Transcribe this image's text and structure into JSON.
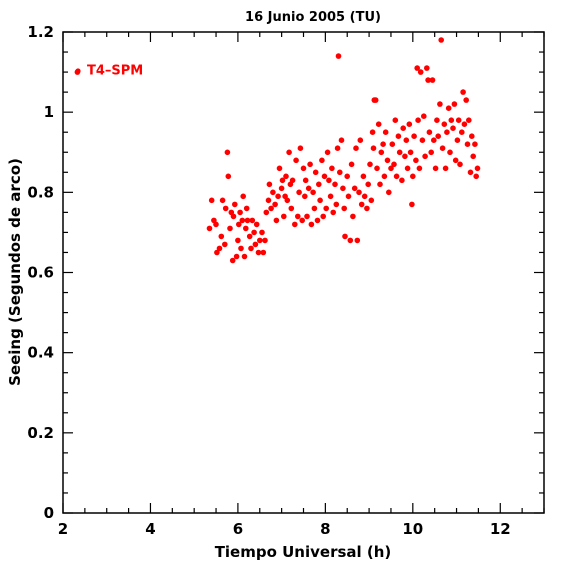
{
  "chart_data": {
    "type": "scatter",
    "title": "16 Junio 2005 (TU)",
    "xlabel": "Tiempo Universal (h)",
    "ylabel": "Seeing (Segundos de arco)",
    "xlim": [
      2,
      13
    ],
    "ylim": [
      0,
      1.2
    ],
    "xticks": [
      2,
      4,
      6,
      8,
      10,
      12
    ],
    "yticks": [
      0,
      0.2,
      0.4,
      0.6,
      0.8,
      1,
      1.2
    ],
    "xtick_labels": [
      "2",
      "4",
      "6",
      "8",
      "10",
      "12"
    ],
    "ytick_labels": [
      "0",
      "0.2",
      "0.4",
      "0.6",
      "0.8",
      "1",
      "1.2"
    ],
    "grid": false,
    "legend": {
      "position": "top-left",
      "label": "T4–SPM",
      "color": "#ff0000"
    },
    "series": [
      {
        "name": "T4–SPM",
        "color": "#ff0000",
        "points": [
          [
            2.33,
            1.1
          ],
          [
            5.35,
            0.71
          ],
          [
            5.4,
            0.78
          ],
          [
            5.45,
            0.73
          ],
          [
            5.5,
            0.72
          ],
          [
            5.52,
            0.65
          ],
          [
            5.58,
            0.66
          ],
          [
            5.62,
            0.69
          ],
          [
            5.65,
            0.78
          ],
          [
            5.7,
            0.67
          ],
          [
            5.72,
            0.76
          ],
          [
            5.76,
            0.9
          ],
          [
            5.78,
            0.84
          ],
          [
            5.82,
            0.71
          ],
          [
            5.85,
            0.75
          ],
          [
            5.88,
            0.63
          ],
          [
            5.9,
            0.74
          ],
          [
            5.93,
            0.77
          ],
          [
            5.97,
            0.64
          ],
          [
            6.0,
            0.68
          ],
          [
            6.02,
            0.72
          ],
          [
            6.05,
            0.75
          ],
          [
            6.07,
            0.66
          ],
          [
            6.1,
            0.73
          ],
          [
            6.12,
            0.79
          ],
          [
            6.15,
            0.64
          ],
          [
            6.18,
            0.71
          ],
          [
            6.2,
            0.76
          ],
          [
            6.22,
            0.73
          ],
          [
            6.27,
            0.69
          ],
          [
            6.3,
            0.66
          ],
          [
            6.33,
            0.73
          ],
          [
            6.37,
            0.7
          ],
          [
            6.4,
            0.67
          ],
          [
            6.43,
            0.72
          ],
          [
            6.47,
            0.65
          ],
          [
            6.5,
            0.68
          ],
          [
            6.55,
            0.7
          ],
          [
            6.58,
            0.65
          ],
          [
            6.62,
            0.68
          ],
          [
            6.65,
            0.75
          ],
          [
            6.7,
            0.78
          ],
          [
            6.72,
            0.82
          ],
          [
            6.76,
            0.76
          ],
          [
            6.8,
            0.8
          ],
          [
            6.85,
            0.77
          ],
          [
            6.88,
            0.73
          ],
          [
            6.92,
            0.79
          ],
          [
            6.95,
            0.86
          ],
          [
            7.0,
            0.81
          ],
          [
            7.02,
            0.83
          ],
          [
            7.05,
            0.74
          ],
          [
            7.08,
            0.79
          ],
          [
            7.1,
            0.84
          ],
          [
            7.13,
            0.78
          ],
          [
            7.17,
            0.9
          ],
          [
            7.2,
            0.82
          ],
          [
            7.22,
            0.76
          ],
          [
            7.25,
            0.83
          ],
          [
            7.3,
            0.72
          ],
          [
            7.33,
            0.88
          ],
          [
            7.37,
            0.74
          ],
          [
            7.4,
            0.8
          ],
          [
            7.43,
            0.91
          ],
          [
            7.47,
            0.73
          ],
          [
            7.5,
            0.86
          ],
          [
            7.53,
            0.79
          ],
          [
            7.55,
            0.83
          ],
          [
            7.58,
            0.74
          ],
          [
            7.62,
            0.81
          ],
          [
            7.65,
            0.87
          ],
          [
            7.68,
            0.72
          ],
          [
            7.72,
            0.8
          ],
          [
            7.75,
            0.76
          ],
          [
            7.78,
            0.85
          ],
          [
            7.82,
            0.73
          ],
          [
            7.85,
            0.82
          ],
          [
            7.88,
            0.78
          ],
          [
            7.92,
            0.88
          ],
          [
            7.95,
            0.74
          ],
          [
            7.98,
            0.84
          ],
          [
            8.02,
            0.76
          ],
          [
            8.05,
            0.9
          ],
          [
            8.08,
            0.83
          ],
          [
            8.12,
            0.79
          ],
          [
            8.15,
            0.86
          ],
          [
            8.18,
            0.75
          ],
          [
            8.22,
            0.82
          ],
          [
            8.25,
            0.77
          ],
          [
            8.28,
            0.91
          ],
          [
            8.3,
            1.14
          ],
          [
            8.33,
            0.85
          ],
          [
            8.37,
            0.93
          ],
          [
            8.4,
            0.81
          ],
          [
            8.43,
            0.76
          ],
          [
            8.45,
            0.69
          ],
          [
            8.5,
            0.84
          ],
          [
            8.53,
            0.79
          ],
          [
            8.57,
            0.68
          ],
          [
            8.6,
            0.87
          ],
          [
            8.63,
            0.74
          ],
          [
            8.67,
            0.81
          ],
          [
            8.7,
            0.91
          ],
          [
            8.73,
            0.68
          ],
          [
            8.77,
            0.8
          ],
          [
            8.8,
            0.93
          ],
          [
            8.83,
            0.77
          ],
          [
            8.87,
            0.84
          ],
          [
            8.9,
            0.79
          ],
          [
            8.95,
            0.76
          ],
          [
            8.98,
            0.82
          ],
          [
            9.02,
            0.87
          ],
          [
            9.05,
            0.78
          ],
          [
            9.08,
            0.95
          ],
          [
            9.1,
            0.91
          ],
          [
            9.12,
            1.03
          ],
          [
            9.15,
            1.03
          ],
          [
            9.18,
            0.86
          ],
          [
            9.22,
            0.97
          ],
          [
            9.25,
            0.82
          ],
          [
            9.28,
            0.9
          ],
          [
            9.32,
            0.92
          ],
          [
            9.35,
            0.84
          ],
          [
            9.38,
            0.95
          ],
          [
            9.42,
            0.88
          ],
          [
            9.45,
            0.8
          ],
          [
            9.5,
            0.86
          ],
          [
            9.53,
            0.92
          ],
          [
            9.57,
            0.87
          ],
          [
            9.6,
            0.98
          ],
          [
            9.63,
            0.84
          ],
          [
            9.67,
            0.94
          ],
          [
            9.7,
            0.9
          ],
          [
            9.75,
            0.83
          ],
          [
            9.78,
            0.96
          ],
          [
            9.82,
            0.89
          ],
          [
            9.85,
            0.93
          ],
          [
            9.88,
            0.86
          ],
          [
            9.92,
            0.97
          ],
          [
            9.95,
            0.9
          ],
          [
            9.98,
            0.77
          ],
          [
            10.0,
            0.84
          ],
          [
            10.03,
            0.94
          ],
          [
            10.07,
            0.88
          ],
          [
            10.1,
            1.11
          ],
          [
            10.12,
            0.98
          ],
          [
            10.15,
            0.86
          ],
          [
            10.18,
            1.1
          ],
          [
            10.22,
            0.93
          ],
          [
            10.25,
            0.99
          ],
          [
            10.28,
            0.89
          ],
          [
            10.32,
            1.11
          ],
          [
            10.35,
            1.08
          ],
          [
            10.38,
            0.95
          ],
          [
            10.42,
            0.9
          ],
          [
            10.45,
            1.08
          ],
          [
            10.48,
            0.93
          ],
          [
            10.52,
            0.86
          ],
          [
            10.55,
            0.98
          ],
          [
            10.58,
            0.94
          ],
          [
            10.62,
            1.02
          ],
          [
            10.65,
            1.18
          ],
          [
            10.68,
            0.91
          ],
          [
            10.72,
            0.97
          ],
          [
            10.75,
            0.86
          ],
          [
            10.78,
            0.95
          ],
          [
            10.82,
            1.01
          ],
          [
            10.85,
            0.9
          ],
          [
            10.88,
            0.98
          ],
          [
            10.92,
            0.96
          ],
          [
            10.95,
            1.02
          ],
          [
            10.98,
            0.88
          ],
          [
            11.02,
            0.93
          ],
          [
            11.05,
            0.98
          ],
          [
            11.08,
            0.87
          ],
          [
            11.12,
            0.95
          ],
          [
            11.15,
            1.05
          ],
          [
            11.18,
            0.97
          ],
          [
            11.22,
            1.03
          ],
          [
            11.25,
            0.92
          ],
          [
            11.28,
            0.98
          ],
          [
            11.32,
            0.85
          ],
          [
            11.35,
            0.94
          ],
          [
            11.38,
            0.89
          ],
          [
            11.42,
            0.92
          ],
          [
            11.45,
            0.84
          ],
          [
            11.48,
            0.86
          ]
        ]
      }
    ]
  }
}
